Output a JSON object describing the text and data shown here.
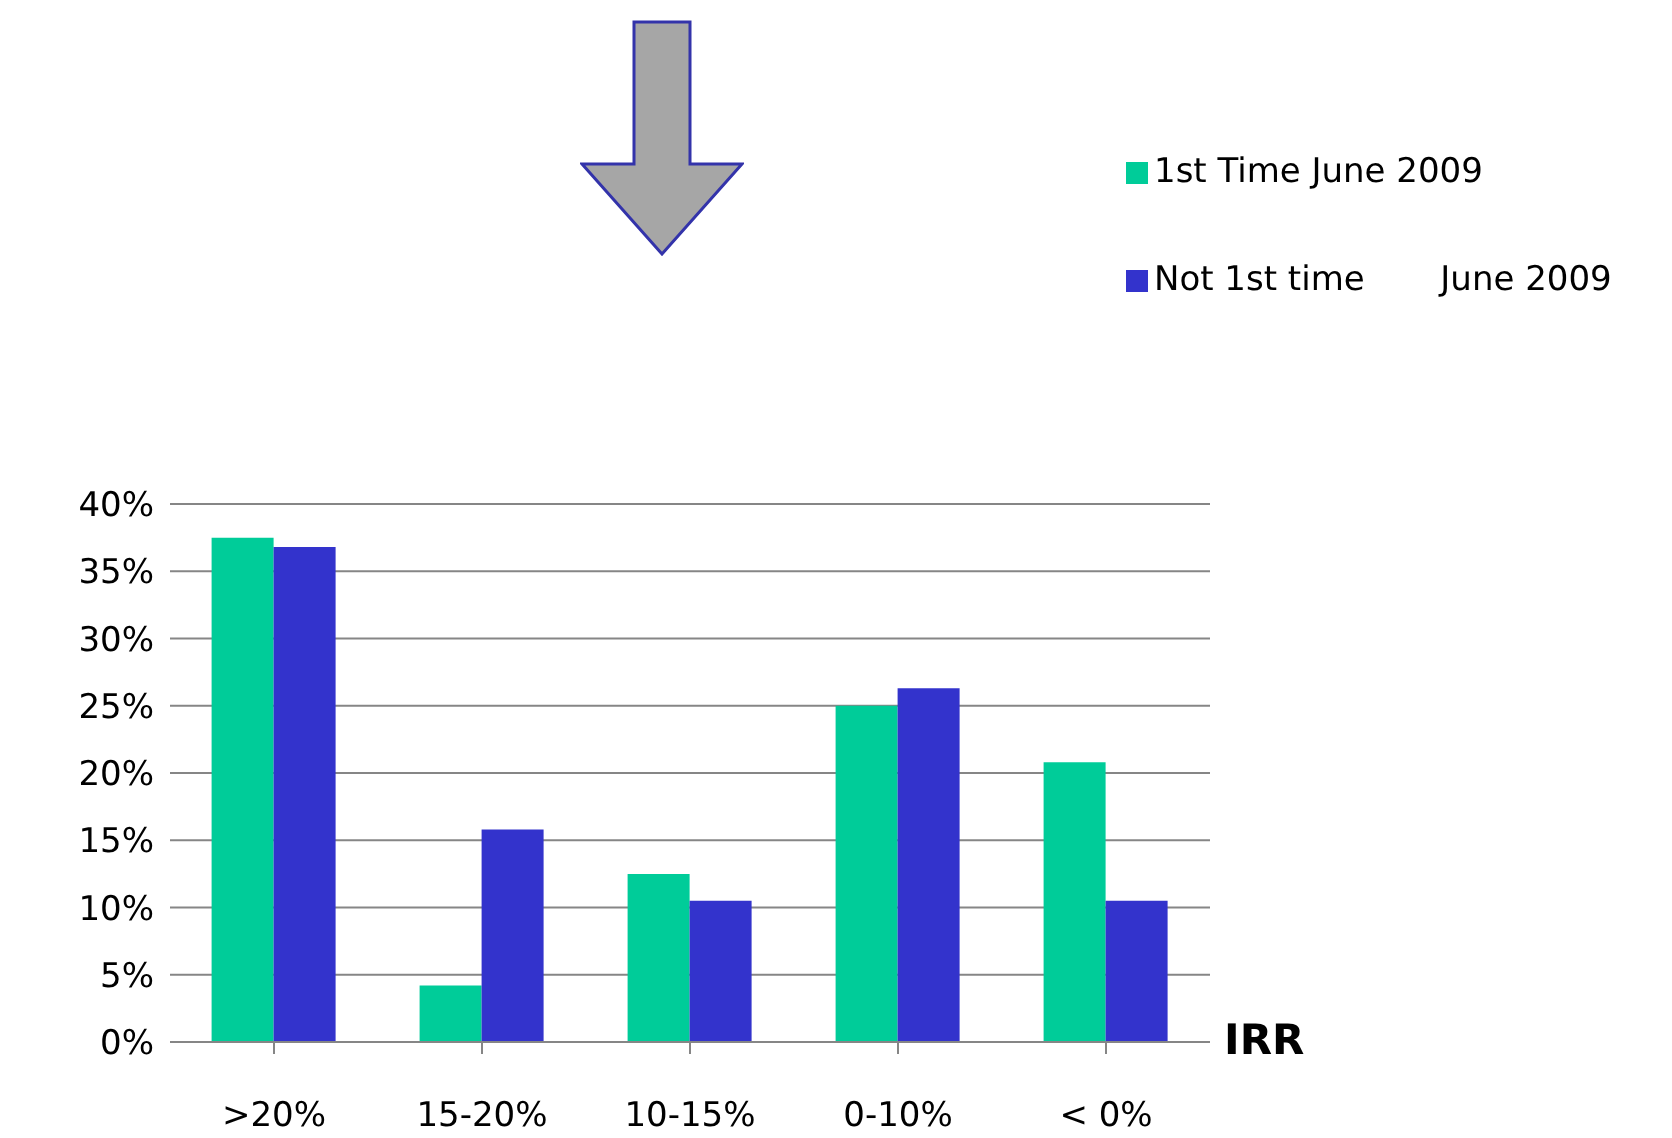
{
  "chart_data": {
    "type": "bar",
    "xlabel": "IRR",
    "categories": [
      ">20%",
      "15-20%",
      "10-15%",
      "0-10%",
      "< 0%"
    ],
    "series": [
      {
        "name": "1st Time June 2009",
        "color": "#00cc99",
        "values": [
          37.5,
          4.2,
          12.5,
          25,
          20.8
        ]
      },
      {
        "name": "Not 1st time       June 2009",
        "color": "#3333cc",
        "values": [
          36.8,
          15.8,
          10.5,
          26.3,
          10.5
        ]
      }
    ],
    "ylim": [
      0,
      40
    ],
    "yticks": [
      {
        "value": 0,
        "label": "0%"
      },
      {
        "value": 5,
        "label": "5%"
      },
      {
        "value": 10,
        "label": "10%"
      },
      {
        "value": 15,
        "label": "15%"
      },
      {
        "value": 20,
        "label": "20%"
      },
      {
        "value": 25,
        "label": "25%"
      },
      {
        "value": 30,
        "label": "30%"
      },
      {
        "value": 35,
        "label": "35%"
      },
      {
        "value": 40,
        "label": "40%"
      }
    ],
    "grid": "y",
    "legend": "top right"
  }
}
